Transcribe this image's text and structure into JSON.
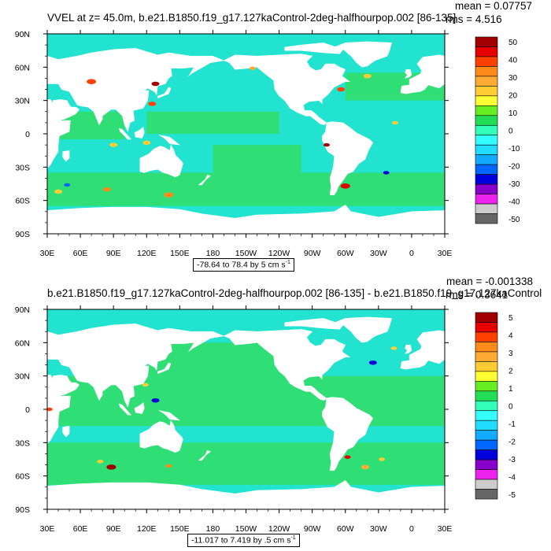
{
  "chart_data": [
    {
      "type": "heatmap",
      "title": "VVEL at z=  45.0m, b.e21.B1850.f19_g17.127kaControl-2deg-halfhourpop.002 [86-135]",
      "mean": "mean = 0.07757",
      "rms": "rms = 4.516",
      "range_label": "-78.64 to 78.4 by 5 cm s",
      "range_unit_sup": "-1",
      "x_tick_labels": [
        "30E",
        "60E",
        "90E",
        "120E",
        "150E",
        "180",
        "150W",
        "120W",
        "90W",
        "60W",
        "30W",
        "0",
        "30E"
      ],
      "y_tick_labels": [
        "90N",
        "60N",
        "30N",
        "0",
        "30S",
        "60S",
        "90S"
      ],
      "colorbar_labels": [
        "50",
        "40",
        "30",
        "20",
        "10",
        "0",
        "-10",
        "-20",
        "-30",
        "-40",
        "-50"
      ],
      "colorbar_colors": [
        "#a00000",
        "#e60000",
        "#ff4000",
        "#ff8c1a",
        "#ffaa33",
        "#ffcc33",
        "#ffff33",
        "#66ee22",
        "#22dd55",
        "#33ffbb",
        "#33ffff",
        "#22ddff",
        "#11aaff",
        "#0066ff",
        "#0000dd",
        "#8800cc",
        "#ee22ee",
        "#cccccc",
        "#666666"
      ]
    },
    {
      "type": "heatmap",
      "title": "b.e21.B1850.f19_g17.127kaControl-2deg-halfhourpop.002 [86-135] - b.e21.B1850.f19_g17.127kaControl",
      "mean": "mean = -0.001338",
      "rms": "rms = 0.3641",
      "range_label": "-11.017 to 7.419 by .5 cm s",
      "range_unit_sup": "-1",
      "x_tick_labels": [
        "30E",
        "60E",
        "90E",
        "120E",
        "150E",
        "180",
        "150W",
        "120W",
        "90W",
        "60W",
        "30W",
        "0",
        "30E"
      ],
      "y_tick_labels": [
        "90N",
        "60N",
        "30N",
        "0",
        "30S",
        "60S",
        "90S"
      ],
      "colorbar_labels": [
        "5",
        "4",
        "3",
        "2",
        "1",
        "0",
        "-1",
        "-2",
        "-3",
        "-4",
        "-5"
      ],
      "colorbar_colors": [
        "#a00000",
        "#e60000",
        "#ff4000",
        "#ff8c1a",
        "#ffaa33",
        "#ffcc33",
        "#ffff33",
        "#66ee22",
        "#22dd55",
        "#33ffbb",
        "#33ffff",
        "#22ddff",
        "#11aaff",
        "#0066ff",
        "#0000dd",
        "#8800cc",
        "#ee22ee",
        "#cccccc",
        "#666666"
      ]
    }
  ],
  "colors": {
    "ocean_base": "#22e3cf",
    "ocean_green": "#33dd66",
    "land": "#ffffff"
  }
}
